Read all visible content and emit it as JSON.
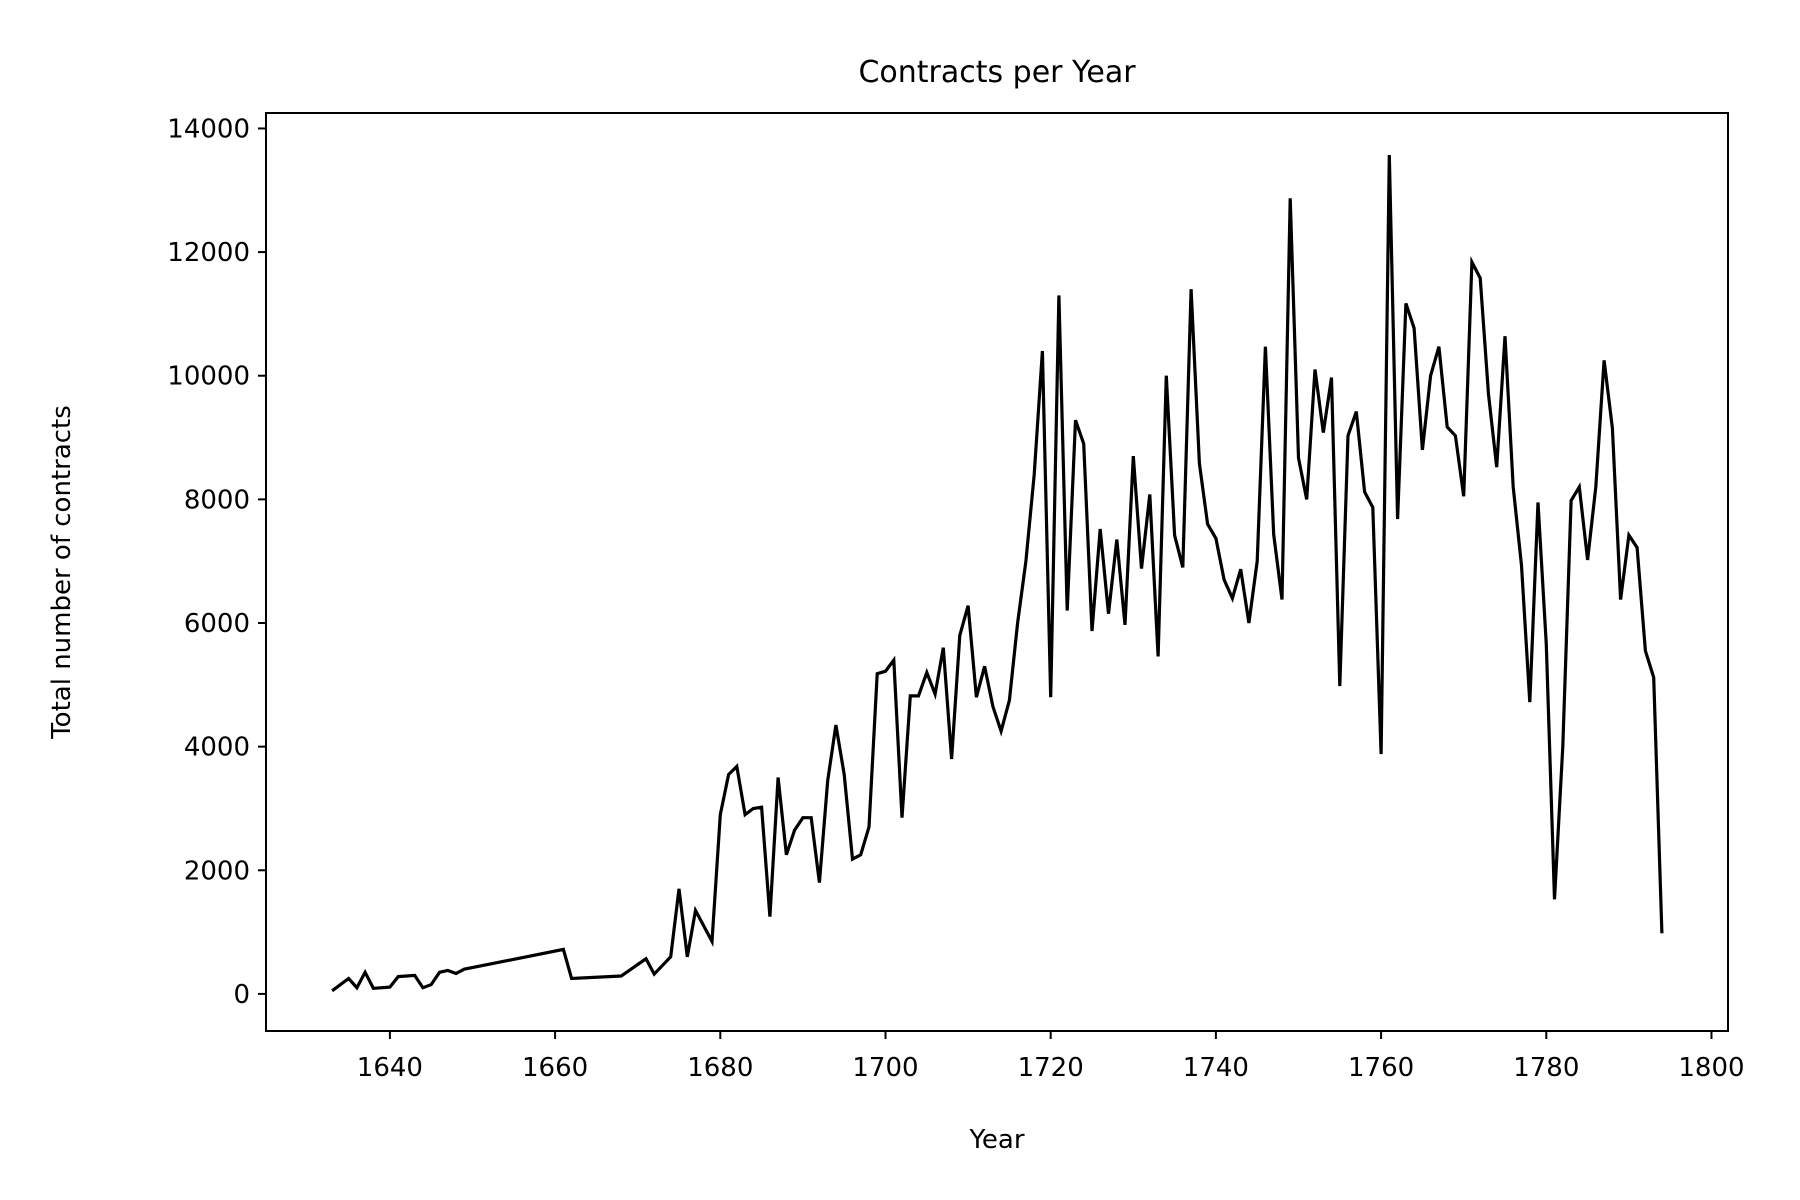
{
  "chart_data": {
    "type": "line",
    "title": "Contracts per Year",
    "xlabel": "Year",
    "ylabel": "Total number of contracts",
    "xlim": [
      1625,
      1802
    ],
    "ylim": [
      -600,
      14250
    ],
    "xticks": [
      1640,
      1660,
      1680,
      1700,
      1720,
      1740,
      1760,
      1780,
      1800
    ],
    "yticks": [
      0,
      2000,
      4000,
      6000,
      8000,
      10000,
      12000,
      14000
    ],
    "grid": false,
    "line_color": "#000000",
    "series": [
      {
        "x": [
          1633,
          1635,
          1636,
          1637,
          1638,
          1640,
          1641,
          1643,
          1644,
          1645,
          1646,
          1647,
          1648,
          1649,
          1661,
          1662,
          1668,
          1671,
          1672,
          1674,
          1675,
          1676,
          1677,
          1679,
          1680,
          1681,
          1682,
          1683,
          1684,
          1685,
          1686,
          1687,
          1688,
          1689,
          1690,
          1691,
          1692,
          1693,
          1694,
          1695,
          1696,
          1697,
          1698,
          1699,
          1700,
          1701,
          1702,
          1703,
          1704,
          1705,
          1706,
          1707,
          1708,
          1709,
          1710,
          1711,
          1712,
          1713,
          1714,
          1715,
          1716,
          1717,
          1718,
          1719,
          1720,
          1721,
          1722,
          1723,
          1724,
          1725,
          1726,
          1727,
          1728,
          1729,
          1730,
          1731,
          1732,
          1733,
          1734,
          1735,
          1736,
          1737,
          1738,
          1739,
          1740,
          1741,
          1742,
          1743,
          1744,
          1745,
          1746,
          1747,
          1748,
          1749,
          1750,
          1751,
          1752,
          1753,
          1754,
          1755,
          1756,
          1757,
          1758,
          1759,
          1760,
          1761,
          1762,
          1763,
          1764,
          1765,
          1766,
          1767,
          1768,
          1769,
          1770,
          1771,
          1772,
          1773,
          1774,
          1775,
          1776,
          1777,
          1778,
          1779,
          1780,
          1781,
          1782,
          1783,
          1784,
          1785,
          1786,
          1787,
          1788,
          1789,
          1790,
          1791,
          1792,
          1793,
          1794
        ],
        "values": [
          50,
          250,
          100,
          350,
          90,
          110,
          280,
          300,
          100,
          150,
          350,
          380,
          330,
          400,
          720,
          250,
          290,
          570,
          320,
          600,
          1700,
          600,
          1350,
          850,
          2900,
          3550,
          3680,
          2900,
          3000,
          3020,
          1250,
          3500,
          2250,
          2650,
          2850,
          2850,
          1800,
          3450,
          4350,
          3550,
          2180,
          2250,
          2700,
          5180,
          5220,
          5400,
          2850,
          4820,
          4820,
          5200,
          4850,
          5600,
          3800,
          5800,
          6280,
          4800,
          5300,
          4650,
          4250,
          4750,
          6000,
          7000,
          8400,
          10400,
          4800,
          11300,
          6200,
          9280,
          8900,
          5870,
          7520,
          6150,
          7350,
          5970,
          8700,
          6880,
          8080,
          5460,
          10000,
          7420,
          6900,
          11400,
          8580,
          7600,
          7370,
          6700,
          6400,
          6870,
          6000,
          7000,
          10470,
          7430,
          6380,
          12870,
          8670,
          8000,
          10100,
          9080,
          9970,
          4980,
          9030,
          9420,
          8120,
          7870,
          3880,
          13570,
          7680,
          11170,
          10770,
          8800,
          10000,
          10470,
          9170,
          9030,
          8050,
          11840,
          11580,
          9700,
          8520,
          10640,
          8200,
          6930,
          4720,
          7950,
          5650,
          1530,
          4000,
          7980,
          8200,
          7020,
          8200,
          10250,
          9150,
          6380,
          7420,
          7220,
          5550,
          5120,
          980
        ]
      }
    ]
  }
}
